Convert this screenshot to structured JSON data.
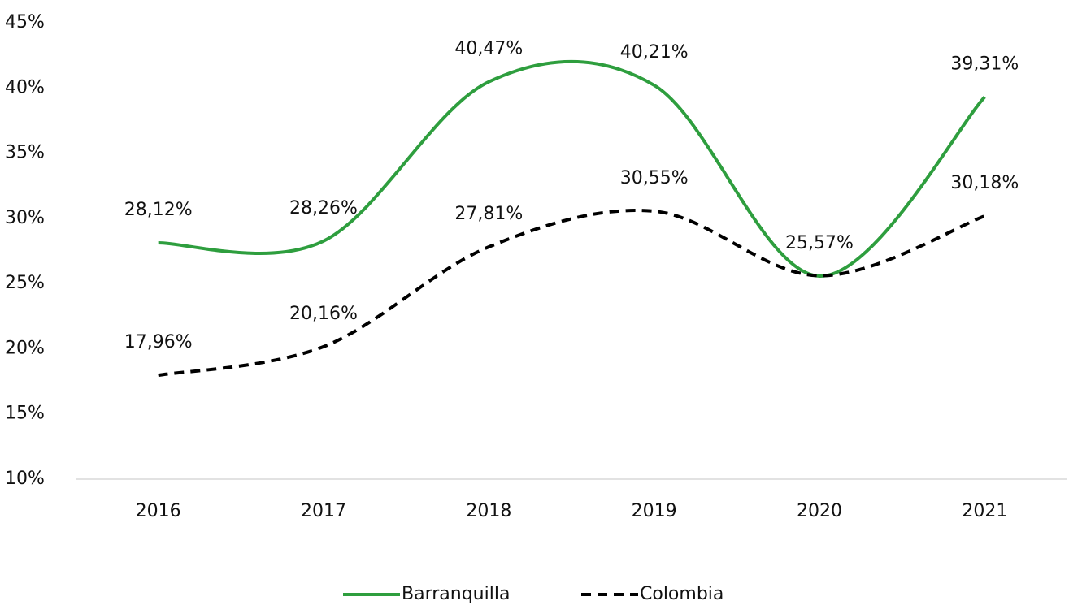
{
  "chart_data": {
    "type": "line",
    "categories": [
      "2016",
      "2017",
      "2018",
      "2019",
      "2020",
      "2021"
    ],
    "series": [
      {
        "name": "Barranquilla",
        "color": "#2e9e3e",
        "dash": false,
        "values": [
          28.12,
          28.26,
          40.47,
          40.21,
          25.57,
          39.31
        ],
        "value_labels": [
          "28,12%",
          "28,26%",
          "40,47%",
          "40,21%",
          "25,57%",
          "39,31%"
        ]
      },
      {
        "name": "Colombia",
        "color": "#000000",
        "dash": true,
        "values": [
          17.96,
          20.16,
          27.81,
          30.55,
          25.6,
          30.18
        ],
        "value_labels": [
          "17,96%",
          "20,16%",
          "27,81%",
          "30,55%",
          null,
          "30,18%"
        ]
      }
    ],
    "ylim": [
      10,
      45
    ],
    "yticks": [
      {
        "value": 10,
        "label": "10%"
      },
      {
        "value": 15,
        "label": "15%"
      },
      {
        "value": 20,
        "label": "20%"
      },
      {
        "value": 25,
        "label": "25%"
      },
      {
        "value": 30,
        "label": "30%"
      },
      {
        "value": 35,
        "label": "35%"
      },
      {
        "value": 40,
        "label": "40%"
      },
      {
        "value": 45,
        "label": "45%"
      }
    ],
    "smooth": true,
    "legend": "bottom"
  }
}
